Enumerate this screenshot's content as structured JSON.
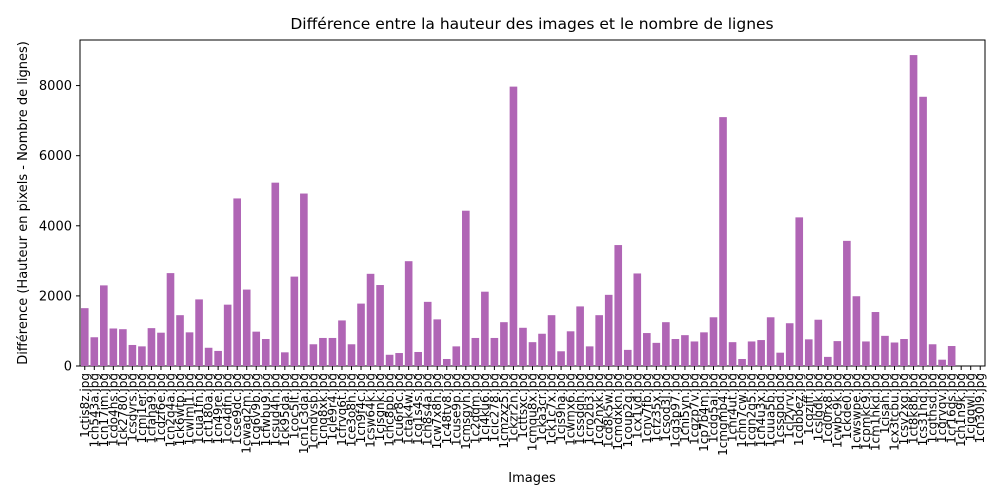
{
  "chart_data": {
    "type": "bar",
    "title": "Différence entre la hauteur des images et le nombre de lignes",
    "xlabel": "Images",
    "ylabel": "Différence (Hauteur en pixels - Nombre de lignes)",
    "ylim": [
      0,
      9300
    ],
    "yticks": [
      0,
      2000,
      4000,
      6000,
      8000
    ],
    "grid": false,
    "bar_color": "#b065b5",
    "categories": [
      "1ctis8z.jpg",
      "1ch543a.jpg",
      "1cn17im.jpg",
      "1cdo4hs.jpg",
      "1ck2780.jpg",
      "1csdvrs.jpg",
      "1cmi1er.jpg",
      "1cfaha9.jpg",
      "1cdzf6e.jpg",
      "1cn2q4a.jpg",
      "1ck6wtp.jpg",
      "1cwlml1.jpg",
      "1cua1fn.jpg",
      "1ct180a.jpg",
      "1cn49re.jpg",
      "1co4dfn.jpg",
      "1cse9dc.jpg",
      "1cwaq2m.jpg",
      "1cq6v9b.jpg",
      "1cfwbu9.jpg",
      "1csud4h.jpg",
      "1ck95da.jpg",
      "1coc5lt.jpg",
      "1cn1c3da.jpg",
      "1cmdvsb.jpg",
      "1cnq8xk.jpg",
      "1cle9r4.jpg",
      "1cfrvq6t.jpg",
      "1ce3o8h.jpg",
      "1cn9f4c.jpg",
      "1csw64k.jpg",
      "1cjsgnk.jpg",
      "1chc8pb.jpg",
      "1cu6r8c.jpg",
      "1ctak4w.jpg",
      "1cq1s4s.jpg",
      "1ch8s4a.jpg",
      "1cw7x8h.jpg",
      "1c48tv8.jpg",
      "1cuse9p.jpg",
      "1cmsgyn.jpg",
      "1c2dqm.jpg",
      "1ci4ku6.jpg",
      "1cic278.jpg",
      "1cmzxz5.jpg",
      "1ckzr2n.jpg",
      "1cttsxc.jpg",
      "1cmqu8x.jpg",
      "1cka3cr.jpg",
      "1ck1c7x.jpg",
      "1cjs9ha.jpg",
      "1cwmx6.jpg",
      "1cssdqh.jpg",
      "1cro2b3.jpg",
      "1cq2nxk.jpg",
      "1cd8k5w.jpg",
      "1cmdxkn.jpg",
      "1coup2g.jpg",
      "1cx1vd.jpg",
      "1cnv7fb.jpg",
      "1cfz35x.jpg",
      "1csod3l.jpg",
      "1cg3p97.jpg",
      "1cni5yn.jpg",
      "1cgzp7v.jpg",
      "1cp7b4m.jpg",
      "1cdg5ai.jpg",
      "1cmgmb4.jpg",
      "1cnr4ut.jpg",
      "1chn7cw.jpg",
      "1cgn2q5.jpg",
      "1cn4u3x.jpg",
      "1cuua5b.jpg",
      "1cssgbd.jpg",
      "1cl2yrv.jpg",
      "1cdbbez.jpg",
      "1cqzjff.jpg",
      "1cslgdk.jpg",
      "1cd0rx8.jpg",
      "1cwbc9k.jpg",
      "1ckde0.jpg",
      "1cwswpe.jpg",
      "1cpmkc9.jpg",
      "1cm1hkd.jpg",
      "1cisah.jpg",
      "1cx3tcbu.jpg",
      "1csv2xg.jpg",
      "1ct8k8b.jpg",
      "1cs31hd.jpg",
      "1cgthsd.jpg",
      "1cgrvqv.jpg",
      "1cr16qs.jpg",
      "1ch1n9k.jpg",
      "1cjgqwl.jpg",
      "1cn30l9.jpg"
    ],
    "values": [
      1650,
      820,
      2300,
      1070,
      1050,
      600,
      560,
      1080,
      950,
      2650,
      1450,
      960,
      1900,
      520,
      430,
      1750,
      4780,
      2180,
      980,
      770,
      5230,
      390,
      2550,
      4920,
      620,
      800,
      800,
      1300,
      620,
      1780,
      2630,
      2310,
      320,
      370,
      2990,
      400,
      1830,
      1330,
      200,
      560,
      4430,
      800,
      2120,
      800,
      1250,
      7970,
      1090,
      680,
      920,
      1450,
      420,
      990,
      1700,
      560,
      1450,
      2030,
      3450,
      460,
      2640,
      940,
      660,
      1250,
      770,
      880,
      700,
      960,
      1390,
      7100,
      680,
      200,
      700,
      740,
      1390,
      380,
      1220,
      4240,
      760,
      1320,
      260,
      710,
      3570,
      1990,
      700,
      1540,
      860,
      670,
      770,
      8870,
      7680,
      620,
      180,
      570,
      0,
      0,
      0
    ]
  }
}
